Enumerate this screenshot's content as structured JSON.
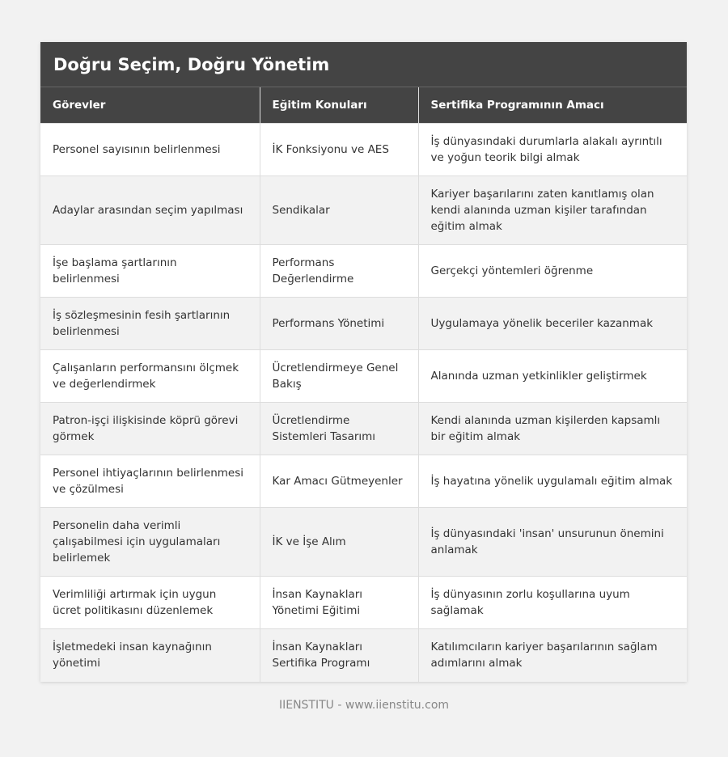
{
  "title": "Doğru Seçim, Doğru Yönetim",
  "headers": [
    "Görevler",
    "Eğitim Konuları",
    "Sertifika Programının Amacı"
  ],
  "rows": [
    [
      "Personel sayısının belirlenmesi",
      "İK Fonksiyonu ve AES",
      "İş dünyasındaki durumlarla alakalı ayrıntılı ve yoğun teorik bilgi almak"
    ],
    [
      "Adaylar arasından seçim yapılması",
      "Sendikalar",
      "Kariyer başarılarını zaten kanıtlamış olan kendi alanında uzman kişiler tarafından eğitim almak"
    ],
    [
      "İşe başlama şartlarının belirlenmesi",
      "Performans Değerlendirme",
      "Gerçekçi yöntemleri öğrenme"
    ],
    [
      "İş sözleşmesinin fesih şartlarının belirlenmesi",
      "Performans Yönetimi",
      "Uygulamaya yönelik beceriler kazanmak"
    ],
    [
      "Çalışanların performansını ölçmek ve değerlendirmek",
      "Ücretlendirmeye Genel Bakış",
      "Alanında uzman yetkinlikler geliştirmek"
    ],
    [
      "Patron-işçi ilişkisinde köprü görevi görmek",
      "Ücretlendirme Sistemleri Tasarımı",
      "Kendi alanında uzman kişilerden kapsamlı bir eğitim almak"
    ],
    [
      "Personel ihtiyaçlarının belirlenmesi ve çözülmesi",
      "Kar Amacı Gütmeyenler",
      "İş hayatına yönelik uygulamalı eğitim almak"
    ],
    [
      "Personelin daha verimli çalışabilmesi için uygulamaları belirlemek",
      "İK ve İşe Alım",
      "İş dünyasındaki 'insan' unsurunun önemini anlamak"
    ],
    [
      "Verimliliği artırmak için uygun ücret politikasını düzenlemek",
      "İnsan Kaynakları Yönetimi Eğitimi",
      "İş dünyasının zorlu koşullarına uyum sağlamak"
    ],
    [
      "İşletmedeki insan kaynağının yönetimi",
      "İnsan Kaynakları Sertifika Programı",
      "Katılımcıların kariyer başarılarının sağlam adımlarını almak"
    ]
  ],
  "footer": "IIENSTITU - www.iienstitu.com"
}
